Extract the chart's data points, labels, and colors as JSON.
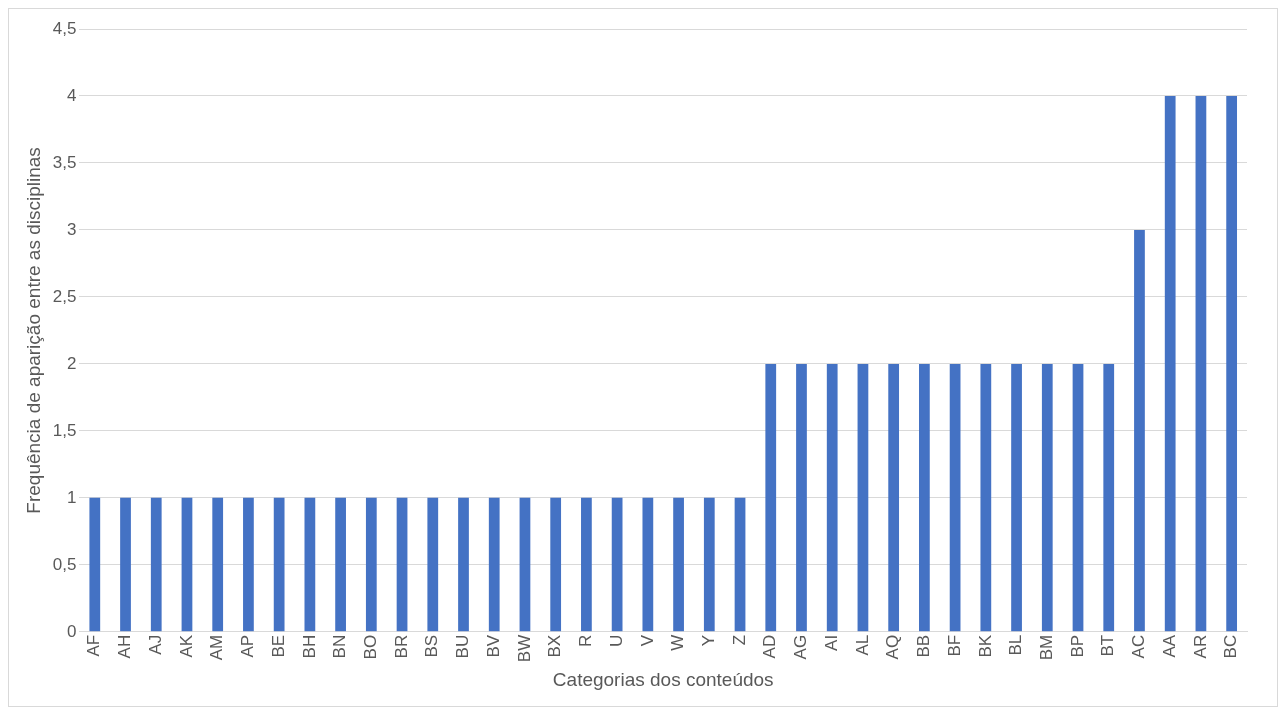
{
  "chart_data": {
    "type": "bar",
    "xlabel": "Categorias dos conteúdos",
    "ylabel": "Frequência de aparição entre as disciplinas",
    "categories": [
      "AF",
      "AH",
      "AJ",
      "AK",
      "AM",
      "AP",
      "BE",
      "BH",
      "BN",
      "BO",
      "BR",
      "BS",
      "BU",
      "BV",
      "BW",
      "BX",
      "R",
      "U",
      "V",
      "W",
      "Y",
      "Z",
      "AD",
      "AG",
      "AI",
      "AL",
      "AQ",
      "BB",
      "BF",
      "BK",
      "BL",
      "BM",
      "BP",
      "BT",
      "AC",
      "AA",
      "AR",
      "BC"
    ],
    "values": [
      1,
      1,
      1,
      1,
      1,
      1,
      1,
      1,
      1,
      1,
      1,
      1,
      1,
      1,
      1,
      1,
      1,
      1,
      1,
      1,
      1,
      1,
      2,
      2,
      2,
      2,
      2,
      2,
      2,
      2,
      2,
      2,
      2,
      2,
      3,
      4,
      4,
      4
    ],
    "color": "#4472c4",
    "ylim": [
      0,
      4.5
    ],
    "yticks": [
      0,
      {
        "value": 0.5,
        "label": "0,5"
      },
      1,
      {
        "value": 1.5,
        "label": "1,5"
      },
      2,
      {
        "value": 2.5,
        "label": "2,5"
      },
      3,
      {
        "value": 3.5,
        "label": "3,5"
      },
      4,
      {
        "value": 4.5,
        "label": "4,5"
      }
    ],
    "grid": "y",
    "legend": false
  }
}
